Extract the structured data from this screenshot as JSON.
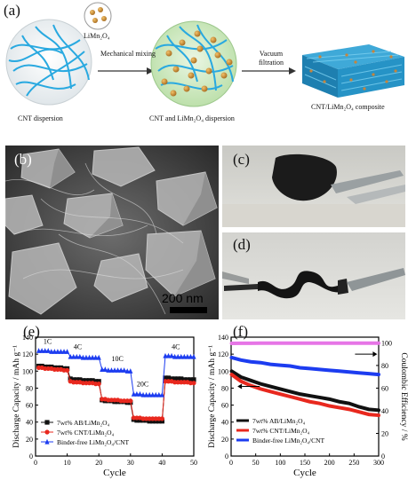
{
  "panel_a": {
    "label": "(a)",
    "limn2o4_label": "LiMn₂O₄",
    "step1_label": "Mechanical mixing",
    "step2_label_line1": "Vacuum",
    "step2_label_line2": "filtration",
    "caption1": "CNT dispersion",
    "caption2": "CNT and LiMn₂O₄ dispersion",
    "caption3": "CNT/LiMn₂O₄ composite"
  },
  "panel_b": {
    "label": "(b)",
    "scalebar": "200 nm"
  },
  "panel_c": {
    "label": "(c)"
  },
  "panel_d": {
    "label": "(d)"
  },
  "panel_e": {
    "label": "(e)"
  },
  "panel_f": {
    "label": "(f)"
  },
  "colors": {
    "black": "#111111",
    "red": "#e8281e",
    "blue": "#1c3cf0",
    "magenta": "#e675e6"
  },
  "chart_data": [
    {
      "type": "line",
      "panel": "(e)",
      "xlabel": "Cycle",
      "ylabel": "Discharge Capacity / mAh g⁻¹",
      "xlim": [
        0,
        50
      ],
      "ylim": [
        0,
        140
      ],
      "xticks": [
        0,
        10,
        20,
        30,
        40,
        50
      ],
      "yticks": [
        0,
        20,
        40,
        60,
        80,
        100,
        120,
        140
      ],
      "annotations": [
        "1C",
        "4C",
        "10C",
        "20C",
        "4C"
      ],
      "legend_position": "bottom-left",
      "series": [
        {
          "name": "7wt% AB/LiMn₂O₄",
          "color": "#111111",
          "marker": "square",
          "x": [
            1,
            2,
            3,
            4,
            5,
            6,
            7,
            8,
            9,
            10,
            11,
            12,
            13,
            14,
            15,
            16,
            17,
            18,
            19,
            20,
            21,
            22,
            23,
            24,
            25,
            26,
            27,
            28,
            29,
            30,
            31,
            32,
            33,
            34,
            35,
            36,
            37,
            38,
            39,
            40,
            41,
            42,
            43,
            44,
            45,
            46,
            47,
            48,
            49,
            50
          ],
          "y": [
            106,
            106,
            105,
            105,
            105,
            104,
            104,
            104,
            103,
            103,
            91,
            90,
            90,
            90,
            89,
            89,
            89,
            89,
            88,
            88,
            66,
            65,
            65,
            65,
            64,
            64,
            64,
            64,
            63,
            63,
            43,
            42,
            42,
            42,
            42,
            41,
            41,
            41,
            41,
            41,
            92,
            92,
            91,
            91,
            91,
            91,
            90,
            90,
            90,
            90
          ]
        },
        {
          "name": "7wt% CNT/LiMn₂O₄",
          "color": "#e8281e",
          "marker": "circle",
          "x": [
            1,
            2,
            3,
            4,
            5,
            6,
            7,
            8,
            9,
            10,
            11,
            12,
            13,
            14,
            15,
            16,
            17,
            18,
            19,
            20,
            21,
            22,
            23,
            24,
            25,
            26,
            27,
            28,
            29,
            30,
            31,
            32,
            33,
            34,
            35,
            36,
            37,
            38,
            39,
            40,
            41,
            42,
            43,
            44,
            45,
            46,
            47,
            48,
            49,
            50
          ],
          "y": [
            104,
            104,
            103,
            103,
            103,
            102,
            102,
            102,
            101,
            101,
            88,
            87,
            87,
            87,
            86,
            86,
            86,
            86,
            85,
            85,
            67,
            67,
            66,
            66,
            66,
            66,
            65,
            65,
            65,
            65,
            45,
            45,
            45,
            44,
            44,
            44,
            44,
            44,
            44,
            44,
            88,
            88,
            88,
            87,
            87,
            87,
            87,
            87,
            86,
            86
          ]
        },
        {
          "name": "Binder-free LiMn₂O₄/CNT",
          "color": "#1c3cf0",
          "marker": "triangle",
          "x": [
            1,
            2,
            3,
            4,
            5,
            6,
            7,
            8,
            9,
            10,
            11,
            12,
            13,
            14,
            15,
            16,
            17,
            18,
            19,
            20,
            21,
            22,
            23,
            24,
            25,
            26,
            27,
            28,
            29,
            30,
            31,
            32,
            33,
            34,
            35,
            36,
            37,
            38,
            39,
            40,
            41,
            42,
            43,
            44,
            45,
            46,
            47,
            48,
            49,
            50
          ],
          "y": [
            124,
            124,
            124,
            124,
            123,
            123,
            123,
            123,
            123,
            123,
            117,
            117,
            117,
            117,
            116,
            116,
            116,
            116,
            116,
            116,
            102,
            102,
            101,
            101,
            101,
            101,
            101,
            101,
            100,
            100,
            73,
            73,
            73,
            72,
            72,
            72,
            72,
            72,
            72,
            72,
            118,
            118,
            118,
            117,
            117,
            117,
            117,
            117,
            117,
            117
          ]
        }
      ]
    },
    {
      "type": "line",
      "panel": "(f)",
      "xlabel": "Cycle",
      "ylabel": "Discharge Capacity / mAh g⁻¹",
      "ylabel_right": "Coulombic Efficiency / %",
      "xlim": [
        0,
        300
      ],
      "ylim": [
        0,
        140
      ],
      "ylim_right": [
        0,
        105
      ],
      "xticks": [
        0,
        50,
        100,
        150,
        200,
        250,
        300
      ],
      "yticks": [
        0,
        20,
        40,
        60,
        80,
        100,
        120,
        140
      ],
      "yticks_right": [
        0,
        20,
        40,
        60,
        80,
        100
      ],
      "legend_position": "bottom-left",
      "series": [
        {
          "name": "7wt% AB/LiMn₂O₄",
          "color": "#111111",
          "axis": "left",
          "x": [
            1,
            20,
            40,
            60,
            80,
            100,
            120,
            140,
            160,
            180,
            200,
            220,
            240,
            260,
            280,
            300
          ],
          "y": [
            100,
            93,
            89,
            85,
            82,
            79,
            76,
            73,
            71,
            69,
            67,
            64,
            62,
            58,
            55,
            54
          ]
        },
        {
          "name": "7wt% CNT/LiMn₂O₄",
          "color": "#e8281e",
          "axis": "left",
          "x": [
            1,
            20,
            40,
            60,
            80,
            100,
            120,
            140,
            160,
            180,
            200,
            220,
            240,
            260,
            280,
            300
          ],
          "y": [
            96,
            88,
            83,
            79,
            76,
            73,
            70,
            67,
            64,
            62,
            59,
            57,
            55,
            52,
            49,
            48
          ]
        },
        {
          "name": "Binder-free LiMn₂O₄/CNT",
          "color": "#1c3cf0",
          "axis": "left",
          "x": [
            1,
            20,
            40,
            60,
            80,
            100,
            120,
            140,
            160,
            180,
            200,
            220,
            240,
            260,
            280,
            300
          ],
          "y": [
            116,
            113,
            111,
            110,
            108,
            107,
            106,
            104,
            103,
            102,
            101,
            100,
            99,
            98,
            97,
            96
          ]
        },
        {
          "color": "#e675e6",
          "axis": "right",
          "x": [
            1,
            20,
            40,
            60,
            80,
            100,
            120,
            140,
            160,
            180,
            200,
            220,
            240,
            260,
            280,
            300
          ],
          "y": [
            99.5,
            99.6,
            99.6,
            99.7,
            99.7,
            99.7,
            99.7,
            99.7,
            99.7,
            99.7,
            99.7,
            99.7,
            99.7,
            99.7,
            99.7,
            99.7
          ]
        }
      ]
    }
  ]
}
